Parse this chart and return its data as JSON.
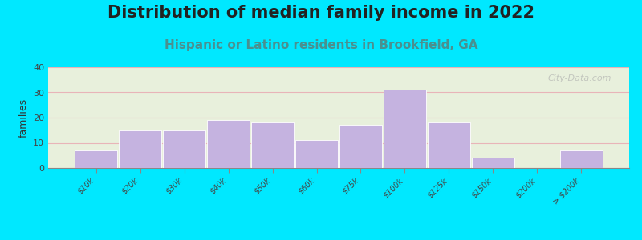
{
  "title": "Distribution of median family income in 2022",
  "subtitle": "Hispanic or Latino residents in Brookfield, GA",
  "ylabel": "families",
  "categories": [
    "$10k",
    "$20k",
    "$30k",
    "$40k",
    "$50k",
    "$60k",
    "$75k",
    "$100k",
    "$125k",
    "$150k",
    "$200k",
    "> $200k"
  ],
  "values": [
    7,
    15,
    15,
    19,
    18,
    11,
    17,
    31,
    18,
    4,
    0,
    7
  ],
  "bar_color": "#c5b3e0",
  "bar_edge_color": "#ffffff",
  "ylim": [
    0,
    40
  ],
  "yticks": [
    0,
    10,
    20,
    30,
    40
  ],
  "bg_outer": "#00e8ff",
  "bg_plot": "#e8f0dc",
  "grid_color": "#e8b4b8",
  "title_fontsize": 15,
  "title_color": "#222222",
  "subtitle_fontsize": 11,
  "subtitle_color": "#4a9090",
  "ylabel_fontsize": 9,
  "tick_fontsize": 7,
  "watermark": "City-Data.com"
}
